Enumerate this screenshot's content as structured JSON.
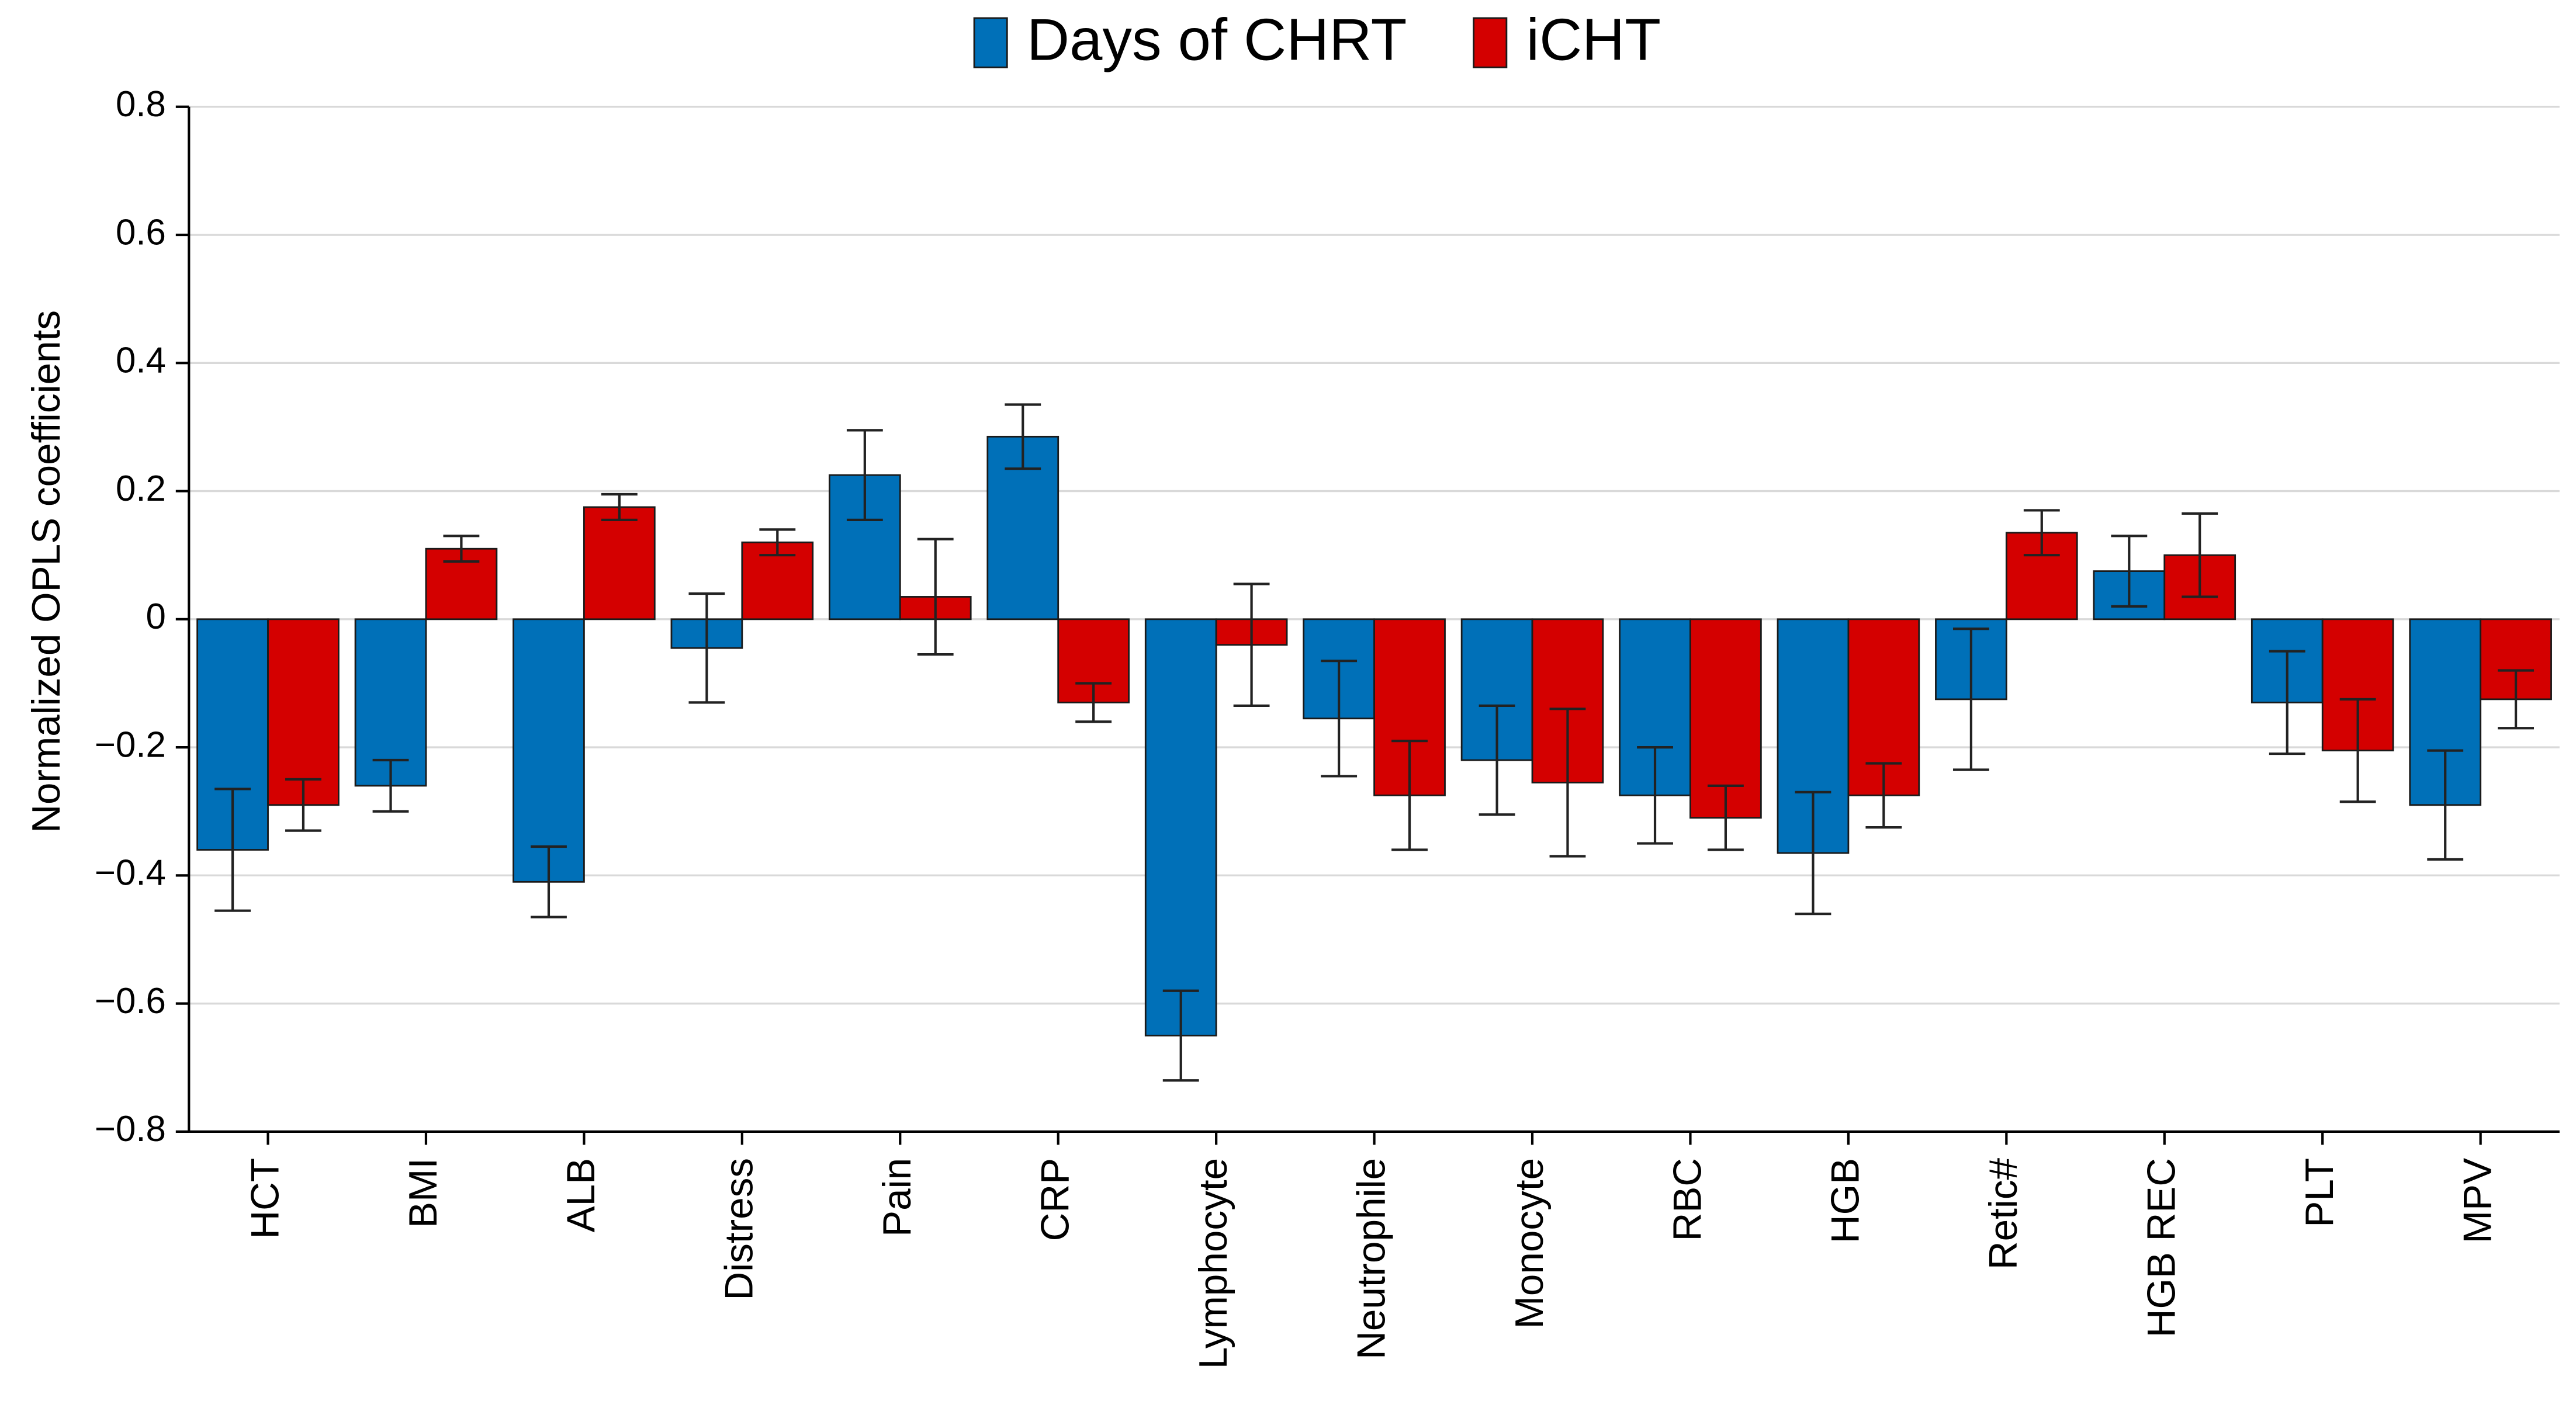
{
  "chart_data": {
    "type": "bar",
    "y_label": "Normalized OPLS coefficients",
    "categories": [
      "HCT",
      "BMI",
      "ALB",
      "Distress",
      "Pain",
      "CRP",
      "Lymphocyte",
      "Neutrophile",
      "Monocyte",
      "RBC",
      "HGB",
      "Retic#",
      "HGB REC",
      "PLT",
      "MPV"
    ],
    "series": [
      {
        "name": "Days of CHRT",
        "color": "#0070b8",
        "values": [
          -0.36,
          -0.26,
          -0.41,
          -0.045,
          0.225,
          0.285,
          -0.65,
          -0.155,
          -0.22,
          -0.275,
          -0.365,
          -0.125,
          0.075,
          -0.13,
          -0.29
        ],
        "errors": [
          0.095,
          0.04,
          0.055,
          0.085,
          0.07,
          0.05,
          0.07,
          0.09,
          0.085,
          0.075,
          0.095,
          0.11,
          0.055,
          0.08,
          0.085
        ]
      },
      {
        "name": "iCHT",
        "color": "#d40000",
        "values": [
          -0.29,
          0.11,
          0.175,
          0.12,
          0.035,
          -0.13,
          -0.04,
          -0.275,
          -0.255,
          -0.31,
          -0.275,
          0.135,
          0.1,
          -0.205,
          -0.125
        ],
        "errors": [
          0.04,
          0.02,
          0.02,
          0.02,
          0.09,
          0.03,
          0.095,
          0.085,
          0.115,
          0.05,
          0.05,
          0.035,
          0.065,
          0.08,
          0.045
        ]
      }
    ],
    "ylim": [
      -0.8,
      0.8
    ],
    "yticks": [
      {
        "value": -0.8,
        "label": "−0.8"
      },
      {
        "value": -0.6,
        "label": "−0.6"
      },
      {
        "value": -0.4,
        "label": "−0.4"
      },
      {
        "value": -0.2,
        "label": "−0.2"
      },
      0,
      0.2,
      0.4,
      0.6,
      0.8
    ],
    "grid": true,
    "legend": "top"
  }
}
